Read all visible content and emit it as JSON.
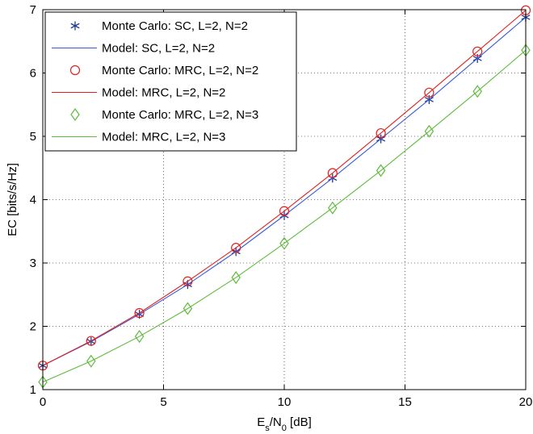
{
  "chart_data": {
    "type": "line",
    "xlabel": {
      "main": "E",
      "sub1": "s",
      "mid": "/N",
      "sub2": "0",
      "unit": " [dB]"
    },
    "ylabel": "EC [bits/s/Hz]",
    "xlim": [
      0,
      20
    ],
    "ylim": [
      1,
      7
    ],
    "xticks": [
      0,
      5,
      10,
      15,
      20
    ],
    "yticks": [
      1,
      2,
      3,
      4,
      5,
      6,
      7
    ],
    "grid": true,
    "legend_position": "top-left",
    "x": [
      0,
      2,
      4,
      6,
      8,
      10,
      12,
      14,
      16,
      18,
      20
    ],
    "series": [
      {
        "name": "Monte Carlo: SC, L=2, N=2",
        "kind": "markers",
        "marker": "asterisk",
        "color": "#1f3a93",
        "values": [
          1.38,
          1.76,
          2.19,
          2.66,
          3.18,
          3.75,
          4.34,
          4.96,
          5.58,
          6.23,
          6.88
        ]
      },
      {
        "name": "Model: SC, L=2, N=2",
        "kind": "line",
        "color": "#3b5bdb",
        "values": [
          1.38,
          1.76,
          2.19,
          2.66,
          3.18,
          3.75,
          4.34,
          4.96,
          5.58,
          6.23,
          6.88
        ]
      },
      {
        "name": "Monte Carlo: MRC, L=2, N=2",
        "kind": "markers",
        "marker": "circle",
        "color": "#e0211f",
        "values": [
          1.38,
          1.77,
          2.21,
          2.71,
          3.24,
          3.82,
          4.42,
          5.05,
          5.69,
          6.34,
          6.99
        ]
      },
      {
        "name": "Model: MRC, L=2, N=2",
        "kind": "line",
        "color": "#e0211f",
        "values": [
          1.38,
          1.77,
          2.21,
          2.71,
          3.24,
          3.82,
          4.42,
          5.05,
          5.69,
          6.34,
          6.99
        ]
      },
      {
        "name": "Monte Carlo: MRC, L=2, N=3",
        "kind": "markers",
        "marker": "diamond",
        "color": "#5dbb3b",
        "values": [
          1.12,
          1.45,
          1.84,
          2.28,
          2.77,
          3.31,
          3.87,
          4.46,
          5.08,
          5.71,
          6.36
        ]
      },
      {
        "name": "Model: MRC, L=2, N=3",
        "kind": "line",
        "color": "#5dbb3b",
        "values": [
          1.12,
          1.45,
          1.84,
          2.28,
          2.77,
          3.31,
          3.87,
          4.46,
          5.08,
          5.71,
          6.36
        ]
      }
    ]
  }
}
